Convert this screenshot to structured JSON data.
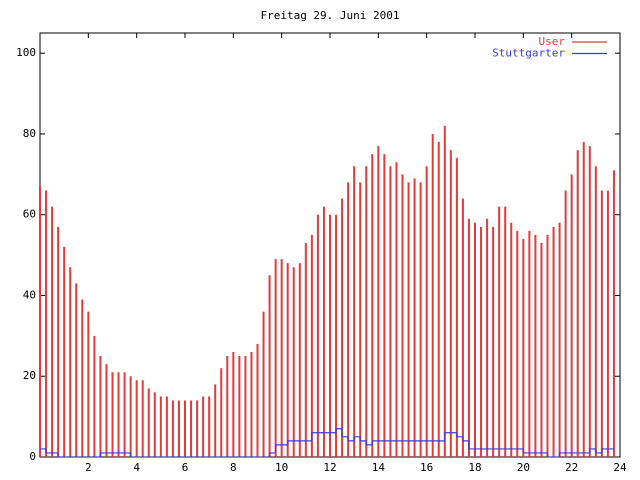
{
  "chart_data": {
    "type": "impulses",
    "title": "Freitag 29. Juni 2001",
    "x": [
      0,
      0.25,
      0.5,
      0.75,
      1,
      1.25,
      1.5,
      1.75,
      2,
      2.25,
      2.5,
      2.75,
      3,
      3.25,
      3.5,
      3.75,
      4,
      4.25,
      4.5,
      4.75,
      5,
      5.25,
      5.5,
      5.75,
      6,
      6.25,
      6.5,
      6.75,
      7,
      7.25,
      7.5,
      7.75,
      8,
      8.25,
      8.5,
      8.75,
      9,
      9.25,
      9.5,
      9.75,
      10,
      10.25,
      10.5,
      10.75,
      11,
      11.25,
      11.5,
      11.75,
      12,
      12.25,
      12.5,
      12.75,
      13,
      13.25,
      13.5,
      13.75,
      14,
      14.25,
      14.5,
      14.75,
      15,
      15.25,
      15.5,
      15.75,
      16,
      16.25,
      16.5,
      16.75,
      17,
      17.25,
      17.5,
      17.75,
      18,
      18.25,
      18.5,
      18.75,
      19,
      19.25,
      19.5,
      19.75,
      20,
      20.25,
      20.5,
      20.75,
      21,
      21.25,
      21.5,
      21.75,
      22,
      22.25,
      22.5,
      22.75,
      23,
      23.25,
      23.5,
      23.75
    ],
    "series": [
      {
        "name": "User",
        "color": "#e03c3c",
        "style": "impulses",
        "values": [
          67,
          66,
          62,
          57,
          52,
          47,
          43,
          39,
          36,
          30,
          25,
          23,
          21,
          21,
          21,
          20,
          19,
          19,
          17,
          16,
          15,
          15,
          14,
          14,
          14,
          14,
          14,
          15,
          15,
          18,
          22,
          25,
          26,
          25,
          25,
          26,
          28,
          36,
          45,
          49,
          49,
          48,
          47,
          48,
          53,
          55,
          60,
          62,
          60,
          60,
          64,
          68,
          72,
          68,
          72,
          75,
          77,
          75,
          72,
          73,
          70,
          68,
          69,
          68,
          72,
          80,
          78,
          82,
          76,
          74,
          64,
          59,
          58,
          57,
          59,
          57,
          62,
          62,
          58,
          56,
          54,
          56,
          55,
          53,
          55,
          57,
          58,
          66,
          70,
          76,
          78,
          77,
          72,
          66,
          66,
          71
        ]
      },
      {
        "name": "Stuttgarter",
        "color": "#3c3cdc",
        "style": "steps",
        "values": [
          2,
          1,
          1,
          0,
          0,
          0,
          0,
          0,
          0,
          0,
          1,
          1,
          1,
          1,
          1,
          0,
          0,
          0,
          0,
          0,
          0,
          0,
          0,
          0,
          0,
          0,
          0,
          0,
          0,
          0,
          0,
          0,
          0,
          0,
          0,
          0,
          0,
          0,
          1,
          3,
          3,
          4,
          4,
          4,
          4,
          6,
          6,
          6,
          6,
          7,
          5,
          4,
          5,
          4,
          3,
          4,
          4,
          4,
          4,
          4,
          4,
          4,
          4,
          4,
          4,
          4,
          4,
          6,
          6,
          5,
          4,
          2,
          2,
          2,
          2,
          2,
          2,
          2,
          2,
          2,
          1,
          1,
          1,
          1,
          0,
          0,
          1,
          1,
          1,
          1,
          1,
          2,
          1,
          2,
          2,
          2
        ]
      }
    ],
    "xlim": [
      0,
      24
    ],
    "xticks": [
      2,
      4,
      6,
      8,
      10,
      12,
      14,
      16,
      18,
      20,
      22,
      24
    ],
    "ylim": [
      0,
      105
    ],
    "yticks": [
      0,
      20,
      40,
      60,
      80,
      100
    ],
    "legend": "top-right"
  }
}
